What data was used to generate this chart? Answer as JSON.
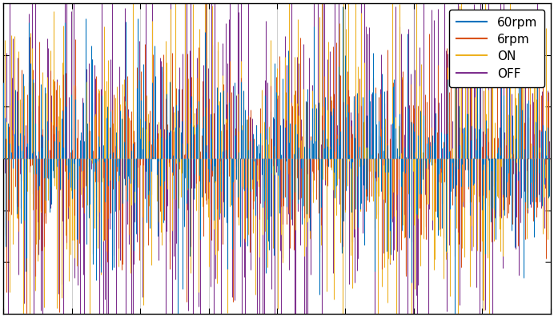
{
  "title": "",
  "xlabel": "",
  "ylabel": "",
  "legend_labels": [
    "60rpm",
    "6rpm",
    "ON",
    "OFF"
  ],
  "colors": [
    "#0072BD",
    "#D95319",
    "#EDB120",
    "#7E2F8E"
  ],
  "n_samples": 500,
  "ylim": [
    -1.5,
    1.5
  ],
  "xlim": [
    0,
    500
  ],
  "background_color": "#FFFFFF",
  "axes_color": "#000000",
  "legend_fontsize": 11,
  "linewidth": 0.8,
  "seed_60rpm": 10,
  "seed_6rpm": 20,
  "seed_on": 30,
  "seed_off": 40,
  "amp_60rpm": 0.55,
  "amp_6rpm": 0.55,
  "amp_on": 0.75,
  "amp_off": 1.1
}
